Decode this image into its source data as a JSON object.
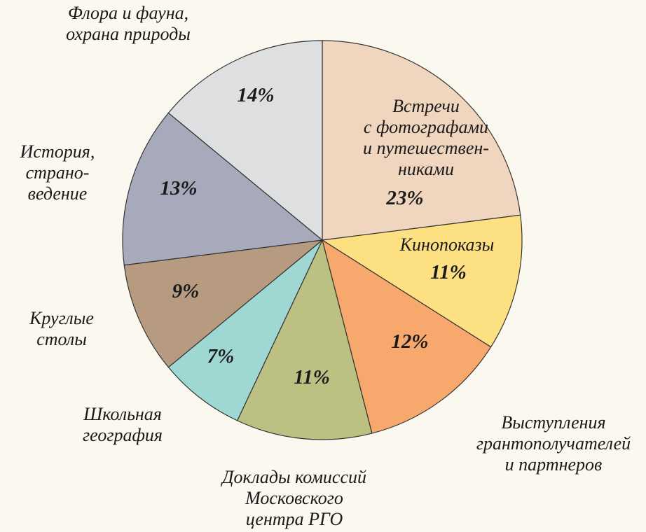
{
  "chart_data": {
    "type": "pie",
    "categories": [
      "Встречи\nс фотографами\nи путешествен-\nниками",
      "Кинопоказы",
      "Выступления\nгрантополучателей\nи партнеров",
      "Доклады комиссий\nМосковского\nцентра РГО",
      "Школьная\nгеография",
      "Круглые\nстолы",
      "История,\nстрано-\nведение",
      "Флора и фауна,\nохрана природы"
    ],
    "values": [
      23,
      11,
      12,
      11,
      7,
      9,
      13,
      14
    ],
    "value_labels": [
      "23%",
      "11%",
      "12%",
      "11%",
      "7%",
      "9%",
      "13%",
      "14%"
    ],
    "colors": [
      "#f0d5bf",
      "#fde081",
      "#f7a86d",
      "#bdc083",
      "#9fd8d3",
      "#b69b81",
      "#a7aabb",
      "#dedfe1"
    ]
  }
}
